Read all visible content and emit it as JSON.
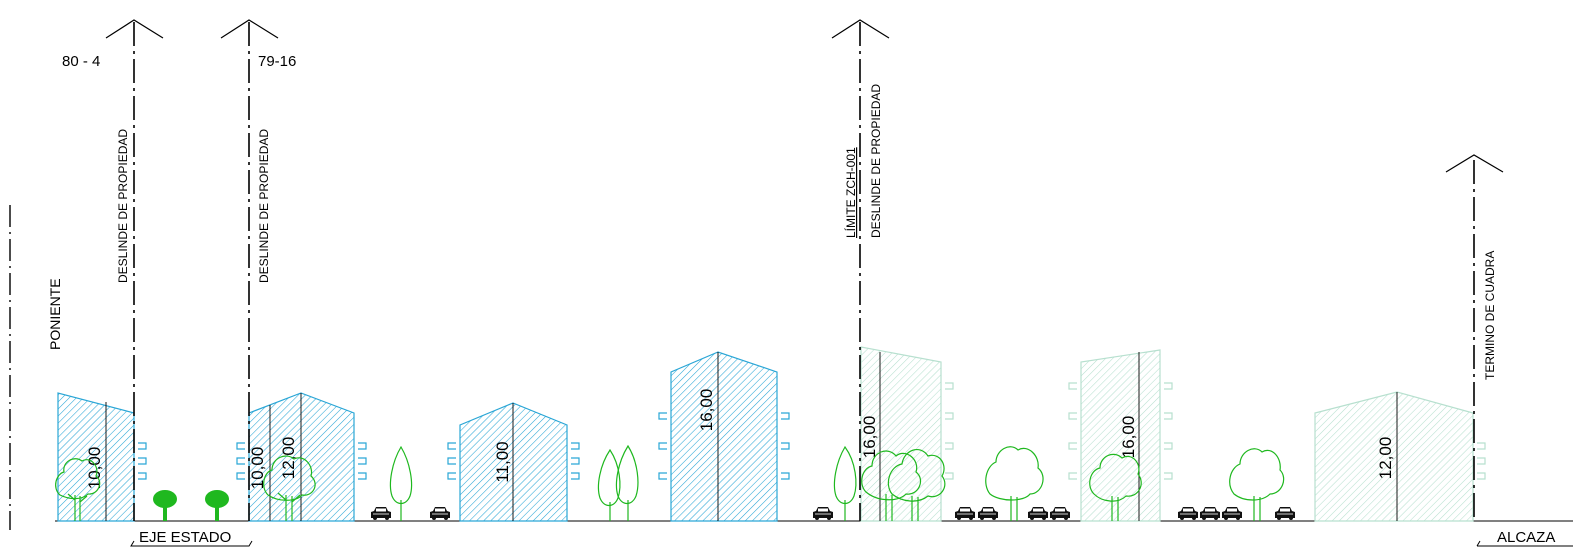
{
  "labels": {
    "lot_left": "80 - 4",
    "lot_right": "79-16",
    "deslinde_1": "DESLINDE DE PROPIEDAD",
    "deslinde_2": "DESLINDE DE PROPIEDAD",
    "limite": "LÍMITE ZCH-001",
    "deslinde_3": "DESLINDE DE PROPIEDAD",
    "termino": "TERMINO DE CUADRA",
    "orientation": "PONIENTE",
    "street_left": "EJE ESTADO",
    "street_right": "ALCAZA"
  },
  "buildings": [
    {
      "height_label": "10,00",
      "style": "blue"
    },
    {
      "height_label": "10,00",
      "style": "blue"
    },
    {
      "height_label": "12,00",
      "style": "blue"
    },
    {
      "height_label": "11,00",
      "style": "blue"
    },
    {
      "height_label": "16,00",
      "style": "blue"
    },
    {
      "height_label": "16,00",
      "style": "faded"
    },
    {
      "height_label": "16,00",
      "style": "faded"
    },
    {
      "height_label": "12,00",
      "style": "faded"
    }
  ],
  "colors": {
    "building_blue": "#2aa6d6",
    "building_faded": "#a8d8c4",
    "tree_green": "#1fb81f",
    "line": "#000000"
  }
}
